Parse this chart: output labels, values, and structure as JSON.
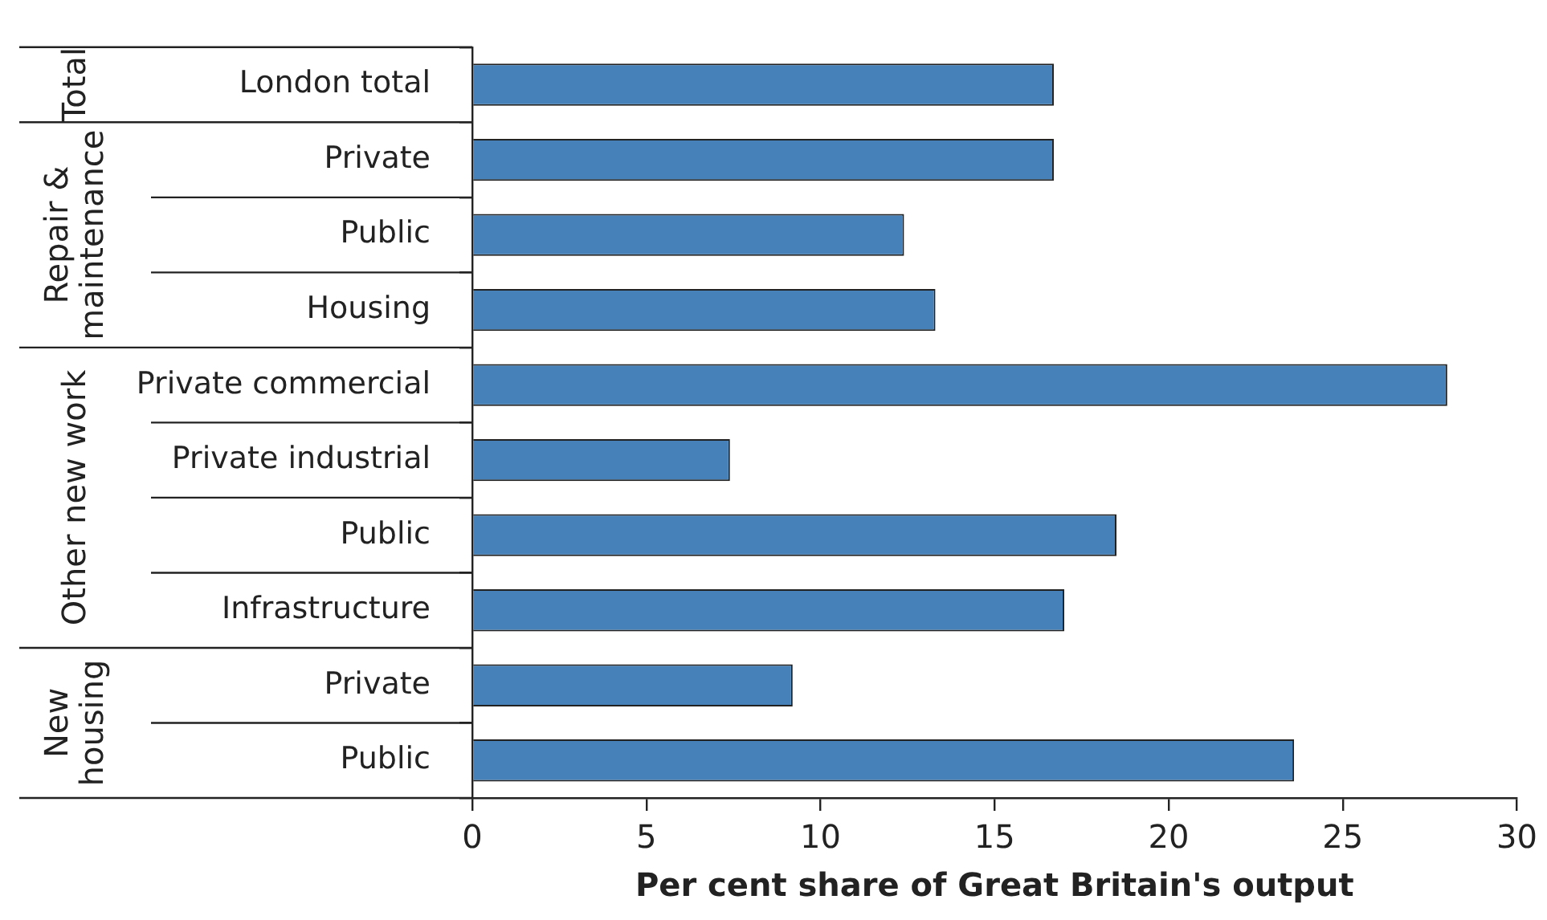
{
  "chart_data": {
    "type": "bar",
    "orientation": "horizontal",
    "xlabel": "Per cent share of Great Britain's output",
    "categories": [
      "London total",
      "Private",
      "Public",
      "Housing",
      "Private commercial",
      "Private industrial",
      "Public",
      "Infrastructure",
      "Private",
      "Public"
    ],
    "values": [
      16.7,
      16.7,
      12.4,
      13.3,
      28.0,
      7.4,
      18.5,
      17.0,
      9.2,
      23.6
    ],
    "color": "#4682b9",
    "xlim": [
      0,
      30
    ],
    "xticks": [
      0,
      5,
      10,
      15,
      20,
      25,
      30
    ],
    "annotations": [
      "Total",
      "Repair & maintenance",
      "Other new work",
      "New housing"
    ],
    "grid": false,
    "legend": false
  }
}
